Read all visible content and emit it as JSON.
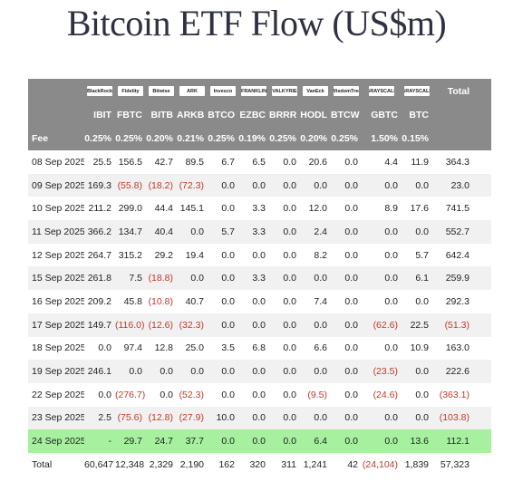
{
  "title": "Bitcoin ETF Flow (US$m)",
  "columns": {
    "logos": [
      "BlackRock",
      "Fidelity",
      "Bitwise",
      "ARK",
      "Invesco",
      "FRANKLIN",
      "VALKYRIE",
      "VanEck",
      "WisdomTree",
      "GRAYSCALE",
      "GRAYSCALE"
    ],
    "tickers": [
      "IBIT",
      "FBTC",
      "BITB",
      "ARKB",
      "BTCO",
      "EZBC",
      "BRRR",
      "HODL",
      "BTCW",
      "GBTC",
      "BTC"
    ],
    "total_label": "Total",
    "fee_label": "Fee",
    "fees": [
      "0.25%",
      "0.25%",
      "0.20%",
      "0.21%",
      "0.25%",
      "0.19%",
      "0.25%",
      "0.20%",
      "0.25%",
      "1.50%",
      "0.15%"
    ]
  },
  "rows": [
    {
      "date": "08 Sep 2025",
      "values": [
        "25.5",
        "156.5",
        "42.7",
        "89.5",
        "6.7",
        "6.5",
        "0.0",
        "20.6",
        "0.0",
        "4.4",
        "11.9"
      ],
      "total": "364.3"
    },
    {
      "date": "09 Sep 2025",
      "values": [
        "169.3",
        "(55.8)",
        "(18.2)",
        "(72.3)",
        "0.0",
        "0.0",
        "0.0",
        "0.0",
        "0.0",
        "0.0",
        "0.0"
      ],
      "total": "23.0"
    },
    {
      "date": "10 Sep 2025",
      "values": [
        "211.2",
        "299.0",
        "44.4",
        "145.1",
        "0.0",
        "3.3",
        "0.0",
        "12.0",
        "0.0",
        "8.9",
        "17.6"
      ],
      "total": "741.5"
    },
    {
      "date": "11 Sep 2025",
      "values": [
        "366.2",
        "134.7",
        "40.4",
        "0.0",
        "5.7",
        "3.3",
        "0.0",
        "2.4",
        "0.0",
        "0.0",
        "0.0"
      ],
      "total": "552.7"
    },
    {
      "date": "12 Sep 2025",
      "values": [
        "264.7",
        "315.2",
        "29.2",
        "19.4",
        "0.0",
        "0.0",
        "0.0",
        "8.2",
        "0.0",
        "0.0",
        "5.7"
      ],
      "total": "642.4"
    },
    {
      "date": "15 Sep 2025",
      "values": [
        "261.8",
        "7.5",
        "(18.8)",
        "0.0",
        "0.0",
        "3.3",
        "0.0",
        "0.0",
        "0.0",
        "0.0",
        "6.1"
      ],
      "total": "259.9"
    },
    {
      "date": "16 Sep 2025",
      "values": [
        "209.2",
        "45.8",
        "(10.8)",
        "40.7",
        "0.0",
        "0.0",
        "0.0",
        "7.4",
        "0.0",
        "0.0",
        "0.0"
      ],
      "total": "292.3"
    },
    {
      "date": "17 Sep 2025",
      "values": [
        "149.7",
        "(116.0)",
        "(12.6)",
        "(32.3)",
        "0.0",
        "0.0",
        "0.0",
        "0.0",
        "0.0",
        "(62.6)",
        "22.5"
      ],
      "total": "(51.3)"
    },
    {
      "date": "18 Sep 2025",
      "values": [
        "0.0",
        "97.4",
        "12.8",
        "25.0",
        "3.5",
        "6.8",
        "0.0",
        "6.6",
        "0.0",
        "0.0",
        "10.9"
      ],
      "total": "163.0"
    },
    {
      "date": "19 Sep 2025",
      "values": [
        "246.1",
        "0.0",
        "0.0",
        "0.0",
        "0.0",
        "0.0",
        "0.0",
        "0.0",
        "0.0",
        "(23.5)",
        "0.0"
      ],
      "total": "222.6"
    },
    {
      "date": "22 Sep 2025",
      "values": [
        "0.0",
        "(276.7)",
        "0.0",
        "(52.3)",
        "0.0",
        "0.0",
        "0.0",
        "(9.5)",
        "0.0",
        "(24.6)",
        "0.0"
      ],
      "total": "(363.1)"
    },
    {
      "date": "23 Sep 2025",
      "values": [
        "2.5",
        "(75.6)",
        "(12.8)",
        "(27.9)",
        "10.0",
        "0.0",
        "0.0",
        "0.0",
        "0.0",
        "0.0",
        "0.0"
      ],
      "total": "(103.8)"
    },
    {
      "date": "24 Sep 2025",
      "values": [
        "-",
        "29.7",
        "24.7",
        "37.7",
        "0.0",
        "0.0",
        "0.0",
        "6.4",
        "0.0",
        "0.0",
        "13.6"
      ],
      "total": "112.1",
      "highlight": true
    }
  ],
  "total_row": {
    "label": "Total",
    "values": [
      "60,647",
      "12,348",
      "2,329",
      "2,190",
      "162",
      "320",
      "311",
      "1,241",
      "42",
      "(24,104)",
      "1,839"
    ],
    "total": "57,323"
  },
  "colors": {
    "header_bg": "#8a8a8a",
    "highlight": "#a6f0a0",
    "negative": "#c0392b"
  }
}
